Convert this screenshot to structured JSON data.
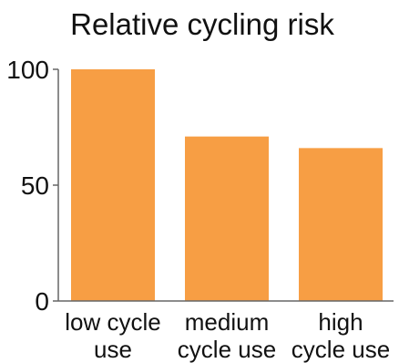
{
  "chart_data": {
    "type": "bar",
    "title": "Relative cycling risk",
    "categories": [
      "low cycle use",
      "medium cycle use",
      "high cycle use"
    ],
    "category_label_lines": [
      [
        "low cycle",
        "use"
      ],
      [
        "medium",
        "cycle use"
      ],
      [
        "high",
        "cycle use"
      ]
    ],
    "values": [
      100,
      71,
      66
    ],
    "ylim": [
      0,
      100
    ],
    "yticks": [
      0,
      50,
      100
    ],
    "xlabel": "",
    "ylabel": "",
    "grid": false,
    "legend": "none",
    "bar_color": "#F79E44"
  }
}
